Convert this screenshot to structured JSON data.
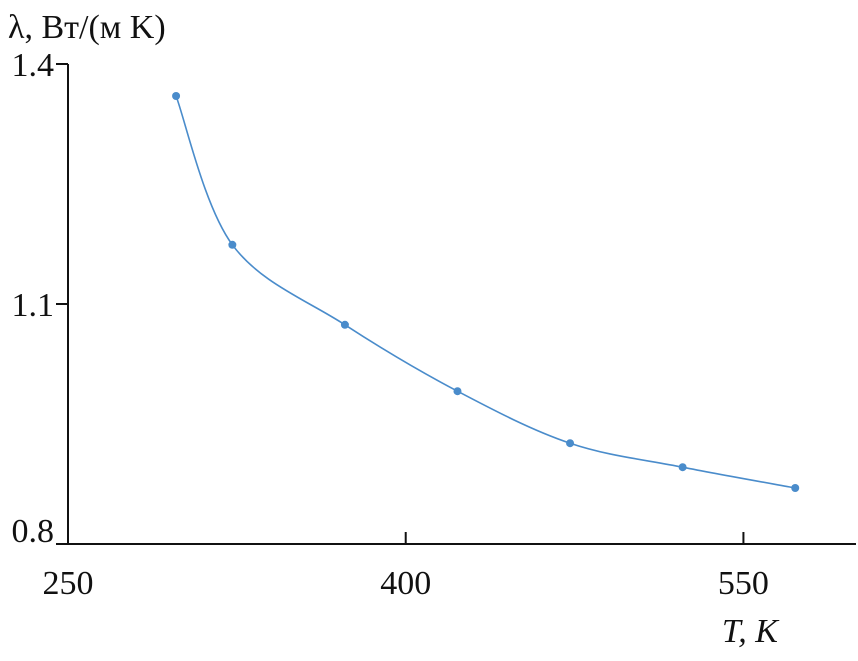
{
  "chart_data": {
    "type": "line",
    "y_label": "λ, Вт/(м K)",
    "x_label": "T, K",
    "x": [
      298,
      323,
      373,
      423,
      473,
      523,
      573
    ],
    "series": [
      {
        "color": "#4a8ccb",
        "values": [
          1.36,
          1.174,
          1.074,
          0.991,
          0.926,
          0.896,
          0.87
        ]
      }
    ],
    "xlim": [
      250,
      600
    ],
    "xticks": [
      250,
      400,
      550
    ],
    "ylim": [
      0.8,
      1.4
    ],
    "yticks": [
      0.8,
      1.1,
      1.4
    ],
    "markers": true,
    "smooth": true
  }
}
